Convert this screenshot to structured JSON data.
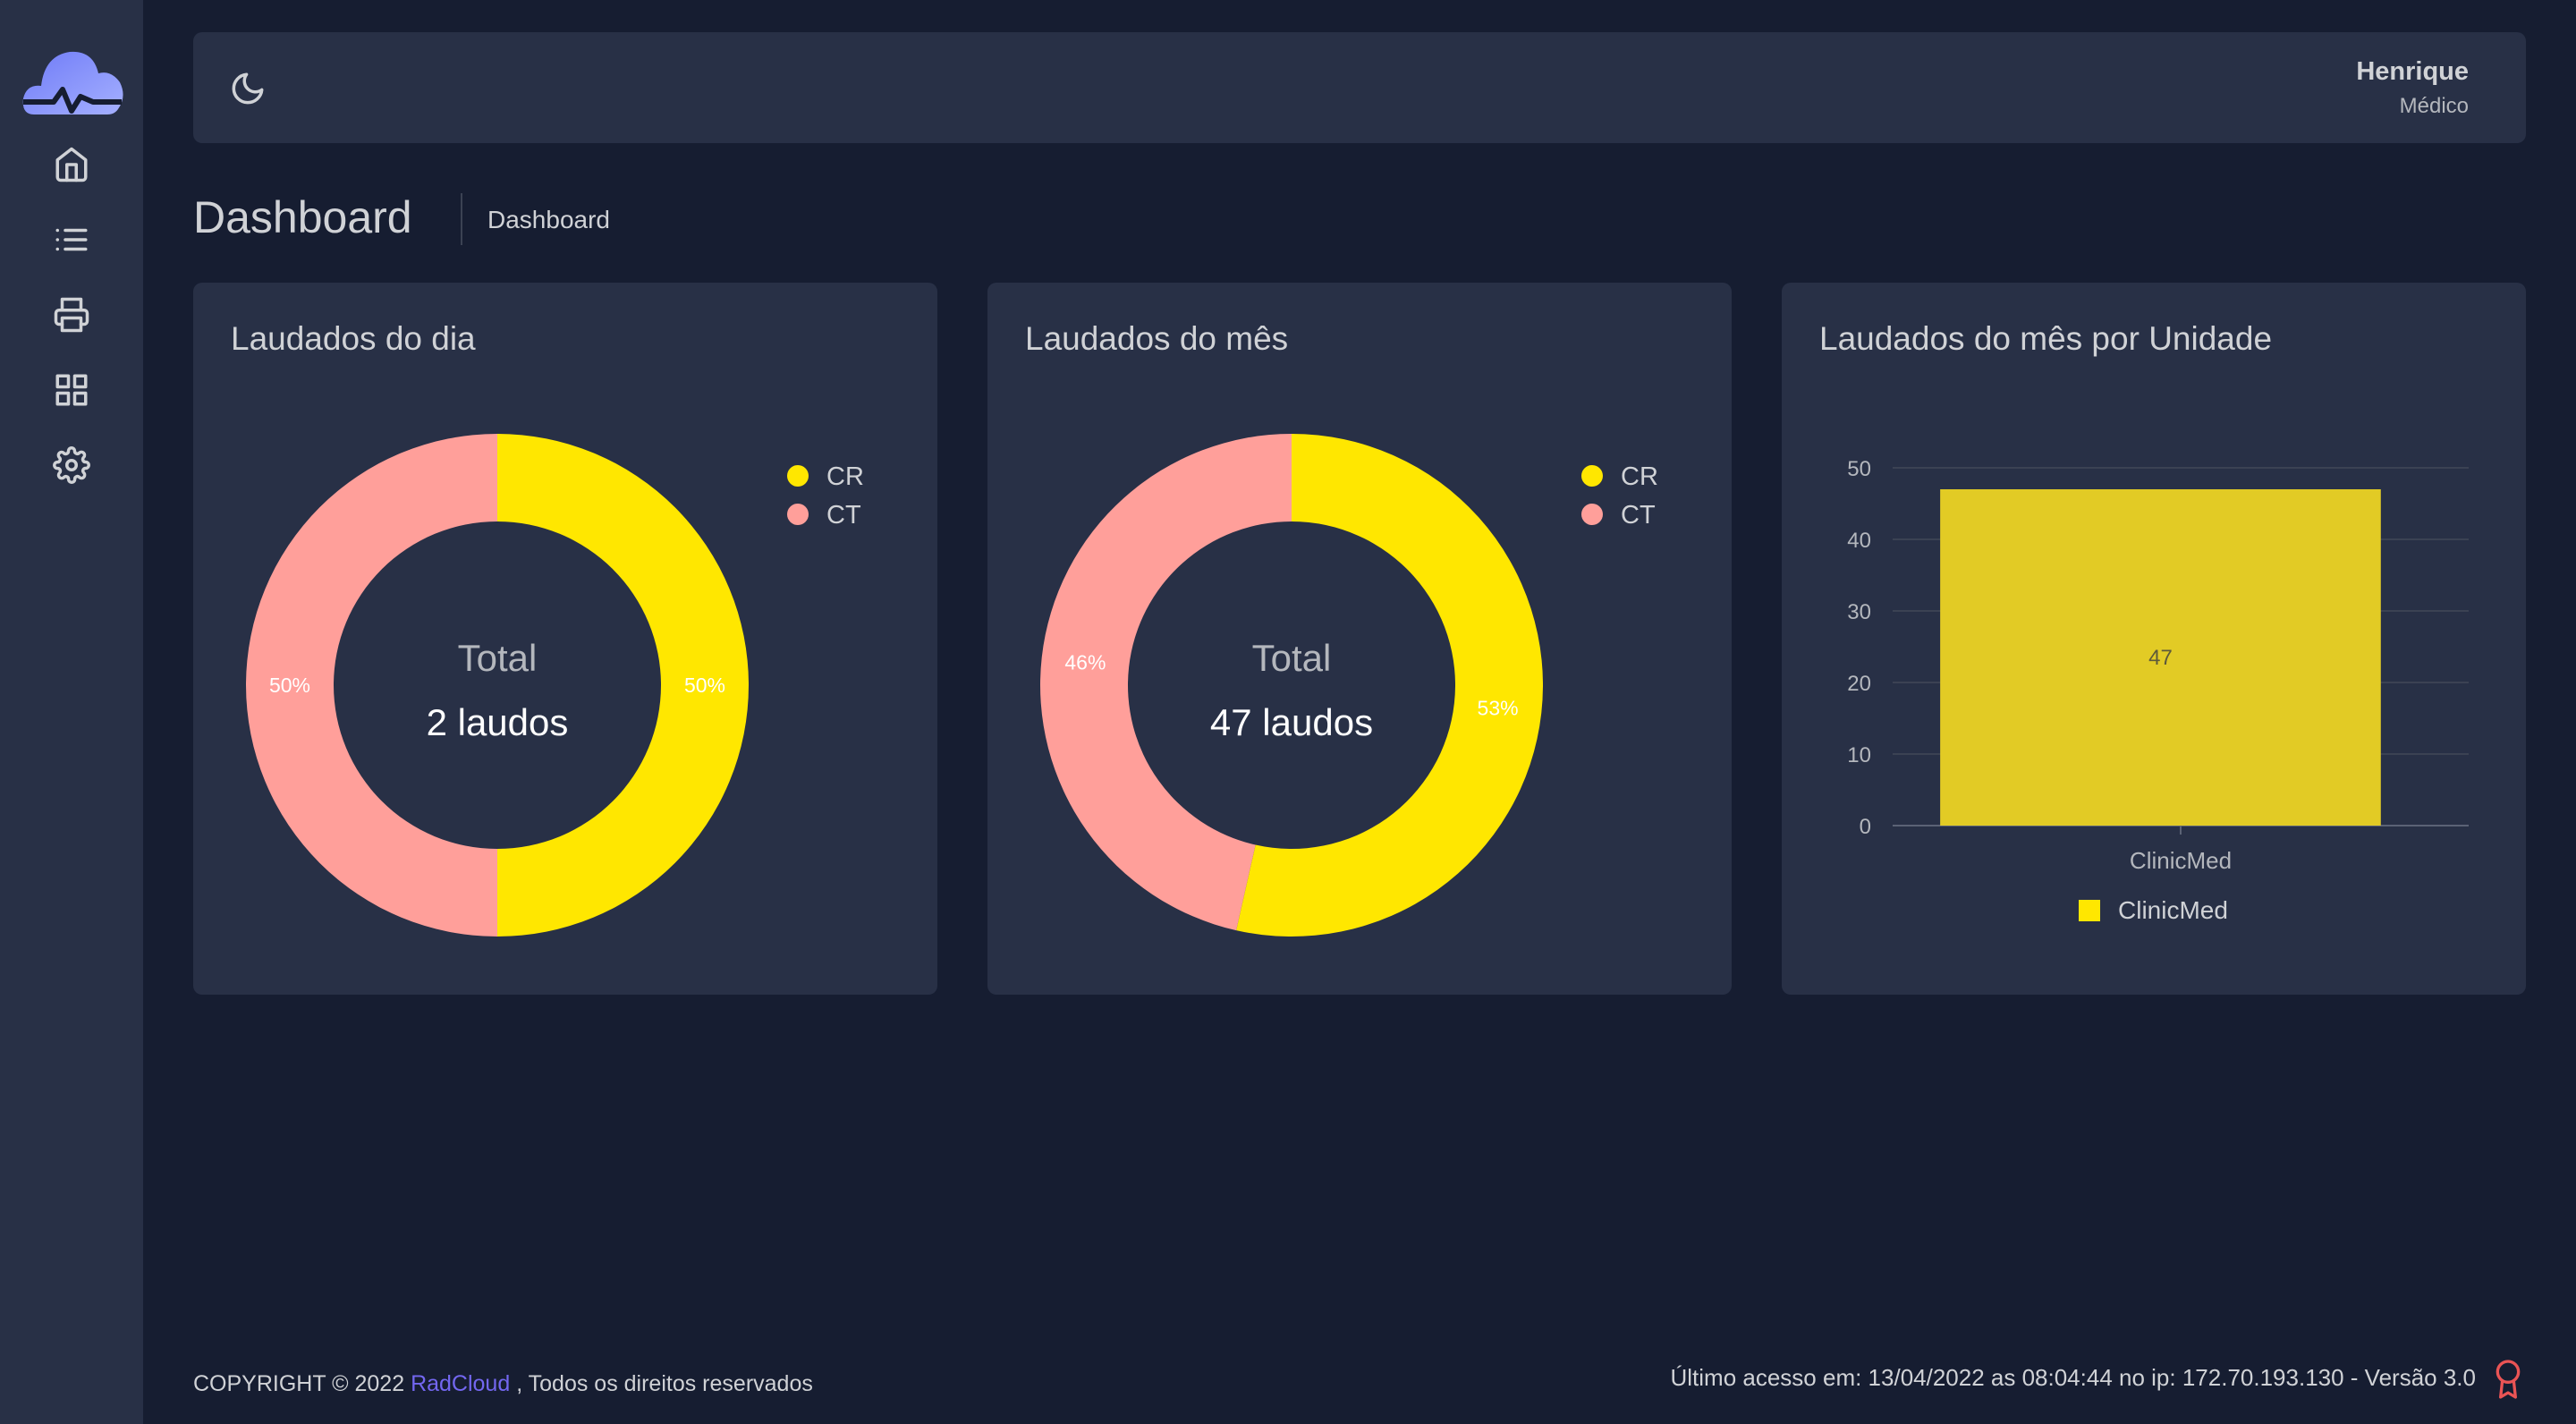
{
  "app": {
    "brand": "RadCloud"
  },
  "sidebar": {
    "items": [
      {
        "name": "home",
        "icon": "home-icon"
      },
      {
        "name": "list",
        "icon": "list-icon"
      },
      {
        "name": "print",
        "icon": "printer-icon"
      },
      {
        "name": "grid",
        "icon": "grid-icon"
      },
      {
        "name": "settings",
        "icon": "gear-icon"
      }
    ]
  },
  "header": {
    "user_name": "Henrique",
    "user_role": "Médico",
    "theme_icon": "moon-icon"
  },
  "page": {
    "title": "Dashboard",
    "breadcrumb": "Dashboard"
  },
  "colors": {
    "cr": "#ffe700",
    "ct": "#ff9f9a",
    "bar": "#e2cb25",
    "accent": "#7367f0"
  },
  "chart_data": [
    {
      "type": "pie",
      "title": "Laudados do dia",
      "center_label": "Total",
      "center_value": "2 laudos",
      "legend": [
        "CR",
        "CT"
      ],
      "series": [
        {
          "name": "CR",
          "value": 50,
          "label": "50%"
        },
        {
          "name": "CT",
          "value": 50,
          "label": "50%"
        }
      ]
    },
    {
      "type": "pie",
      "title": "Laudados do mês",
      "center_label": "Total",
      "center_value": "47 laudos",
      "legend": [
        "CR",
        "CT"
      ],
      "series": [
        {
          "name": "CR",
          "value": 53,
          "label": "53%"
        },
        {
          "name": "CT",
          "value": 46,
          "label": "46%"
        }
      ]
    },
    {
      "type": "bar",
      "title": "Laudados do mês por Unidade",
      "categories": [
        "ClinicMed"
      ],
      "values": [
        47
      ],
      "value_labels": [
        "47"
      ],
      "yticks": [
        "0",
        "10",
        "20",
        "30",
        "40",
        "50"
      ],
      "ylim": [
        0,
        50
      ],
      "legend": [
        "ClinicMed"
      ]
    }
  ],
  "footer": {
    "copyright_prefix": "COPYRIGHT © 2022",
    "brand": "RadCloud",
    "copyright_suffix": ", Todos os direitos reservados",
    "last_access": "Último acesso em: 13/04/2022 as 08:04:44 no ip: 172.70.193.130 - Versão 3.0"
  }
}
